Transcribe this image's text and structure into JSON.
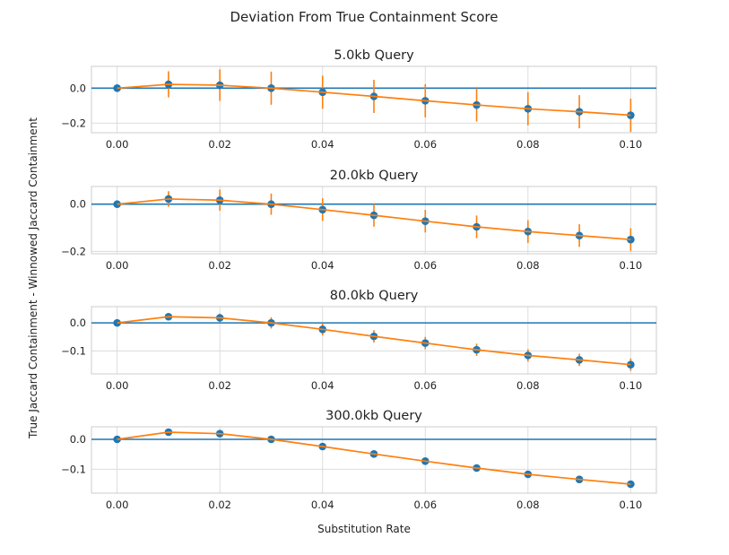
{
  "figure": {
    "suptitle": "Deviation From True Containment Score",
    "xlabel": "Substitution Rate",
    "ylabel": "True Jaccard Containment - Winnowed Jaccard Containment"
  },
  "colors": {
    "points": "#1f77b4",
    "line": "#ff7f0e",
    "errorbar": "#ff7f0e",
    "zero_line": "#1f77b4",
    "grid": "#d9d9d9",
    "frame": "#cccccc"
  },
  "chart_data": [
    {
      "type": "line",
      "title": "5.0kb Query",
      "x": [
        0.0,
        0.01,
        0.02,
        0.03,
        0.04,
        0.05,
        0.06,
        0.07,
        0.08,
        0.09,
        0.1
      ],
      "y": [
        0.0,
        0.022,
        0.017,
        0.0,
        -0.023,
        -0.047,
        -0.072,
        -0.096,
        -0.118,
        -0.135,
        -0.155
      ],
      "yerr": [
        0.0,
        0.075,
        0.09,
        0.095,
        0.095,
        0.095,
        0.095,
        0.095,
        0.095,
        0.095,
        0.095
      ],
      "xlim": [
        -0.005,
        0.105
      ],
      "ylim": [
        -0.255,
        0.125
      ],
      "xticks": [
        "0.00",
        "0.02",
        "0.04",
        "0.06",
        "0.08",
        "0.10"
      ],
      "xtick_values": [
        0.0,
        0.02,
        0.04,
        0.06,
        0.08,
        0.1
      ],
      "yticks": [
        "0.0",
        "−0.2"
      ],
      "ytick_values": [
        0.0,
        -0.2
      ],
      "hline": 0.0,
      "grid": true
    },
    {
      "type": "line",
      "title": "20.0kb Query",
      "x": [
        0.0,
        0.01,
        0.02,
        0.03,
        0.04,
        0.05,
        0.06,
        0.07,
        0.08,
        0.09,
        0.1
      ],
      "y": [
        0.0,
        0.022,
        0.017,
        0.0,
        -0.023,
        -0.047,
        -0.072,
        -0.096,
        -0.116,
        -0.133,
        -0.15
      ],
      "yerr": [
        0.0,
        0.033,
        0.045,
        0.045,
        0.048,
        0.048,
        0.048,
        0.048,
        0.048,
        0.048,
        0.048
      ],
      "xlim": [
        -0.005,
        0.105
      ],
      "ylim": [
        -0.21,
        0.075
      ],
      "xticks": [
        "0.00",
        "0.02",
        "0.04",
        "0.06",
        "0.08",
        "0.10"
      ],
      "xtick_values": [
        0.0,
        0.02,
        0.04,
        0.06,
        0.08,
        0.1
      ],
      "yticks": [
        "0.0",
        "−0.2"
      ],
      "ytick_values": [
        0.0,
        -0.2
      ],
      "hline": 0.0,
      "grid": true
    },
    {
      "type": "line",
      "title": "80.0kb Query",
      "x": [
        0.0,
        0.01,
        0.02,
        0.03,
        0.04,
        0.05,
        0.06,
        0.07,
        0.08,
        0.09,
        0.1
      ],
      "y": [
        0.0,
        0.022,
        0.018,
        0.0,
        -0.023,
        -0.048,
        -0.072,
        -0.096,
        -0.116,
        -0.132,
        -0.149
      ],
      "yerr": [
        0.0,
        0.01,
        0.015,
        0.02,
        0.022,
        0.022,
        0.022,
        0.022,
        0.022,
        0.022,
        0.022
      ],
      "xlim": [
        -0.005,
        0.105
      ],
      "ylim": [
        -0.182,
        0.058
      ],
      "xticks": [
        "0.00",
        "0.02",
        "0.04",
        "0.06",
        "0.08",
        "0.10"
      ],
      "xtick_values": [
        0.0,
        0.02,
        0.04,
        0.06,
        0.08,
        0.1
      ],
      "yticks": [
        "0.0",
        "−0.1"
      ],
      "ytick_values": [
        0.0,
        -0.1
      ],
      "hline": 0.0,
      "grid": true
    },
    {
      "type": "line",
      "title": "300.0kb Query",
      "x": [
        0.0,
        0.01,
        0.02,
        0.03,
        0.04,
        0.05,
        0.06,
        0.07,
        0.08,
        0.09,
        0.1
      ],
      "y": [
        0.0,
        0.024,
        0.019,
        0.0,
        -0.024,
        -0.049,
        -0.073,
        -0.096,
        -0.117,
        -0.134,
        -0.15
      ],
      "yerr": [
        0.0,
        0.004,
        0.005,
        0.005,
        0.005,
        0.005,
        0.005,
        0.005,
        0.005,
        0.005,
        0.005
      ],
      "xlim": [
        -0.005,
        0.105
      ],
      "ylim": [
        -0.18,
        0.042
      ],
      "xticks": [
        "0.00",
        "0.02",
        "0.04",
        "0.06",
        "0.08",
        "0.10"
      ],
      "xtick_values": [
        0.0,
        0.02,
        0.04,
        0.06,
        0.08,
        0.1
      ],
      "yticks": [
        "0.0",
        "−0.1"
      ],
      "ytick_values": [
        0.0,
        -0.1
      ],
      "hline": 0.0,
      "grid": true
    }
  ]
}
